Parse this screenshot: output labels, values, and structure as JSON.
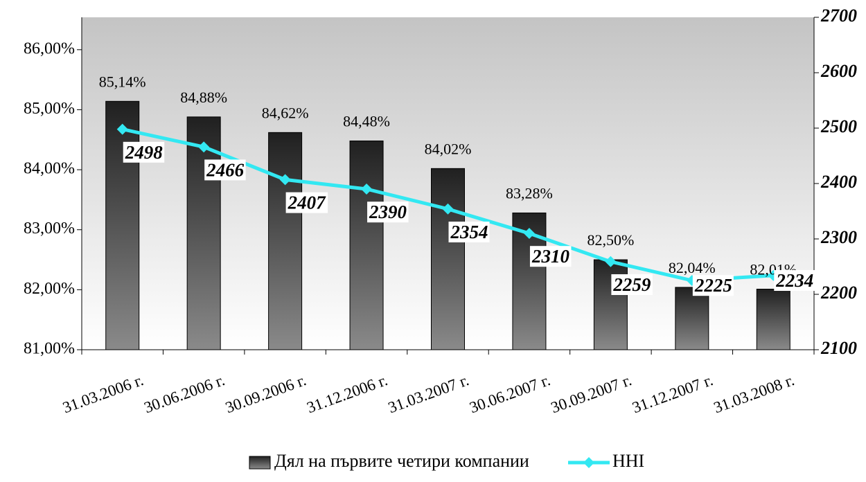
{
  "chart_data": {
    "type": "bar",
    "categories": [
      "31.03.2006 г.",
      "30.06.2006 г.",
      "30.09.2006 г.",
      "31.12.2006 г.",
      "31.03.2007 г.",
      "30.06.2007 г.",
      "30.09.2007 г.",
      "31.12.2007 г.",
      "31.03.2008 г."
    ],
    "series": [
      {
        "name": "Дял на първите четири компании",
        "type": "bar",
        "color": "#444444",
        "values": [
          85.14,
          84.88,
          84.62,
          84.48,
          84.02,
          83.28,
          82.5,
          82.04,
          82.01
        ],
        "value_labels": [
          "85,14%",
          "84,88%",
          "84,62%",
          "84,48%",
          "84,02%",
          "83,28%",
          "82,50%",
          "82,04%",
          "82,01%"
        ]
      },
      {
        "name": "HHI",
        "type": "line",
        "axis": "y2",
        "color": "#33e8f2",
        "values": [
          2498,
          2466,
          2407,
          2390,
          2354,
          2310,
          2259,
          2225,
          2234
        ]
      }
    ],
    "ylim": [
      81,
      86.54
    ],
    "yticks": [
      {
        "value": 81,
        "label": "81,00%"
      },
      {
        "value": 82,
        "label": "82,00%"
      },
      {
        "value": 83,
        "label": "83,00%"
      },
      {
        "value": 84,
        "label": "84,00%"
      },
      {
        "value": 85,
        "label": "85,00%"
      },
      {
        "value": 86,
        "label": "86,00%"
      }
    ],
    "y2lim": [
      2100,
      2700
    ],
    "y2ticks": [
      2100,
      2200,
      2300,
      2400,
      2500,
      2600,
      2700
    ],
    "legend": "bottom"
  }
}
